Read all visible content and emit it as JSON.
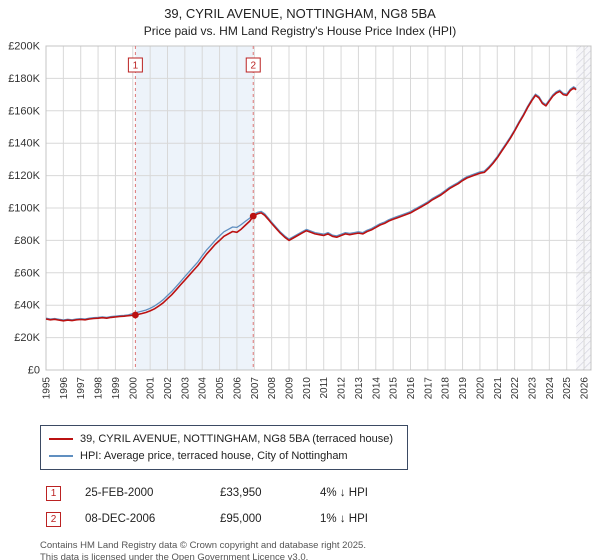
{
  "title": "39, CYRIL AVENUE, NOTTINGHAM, NG8 5BA",
  "subtitle": "Price paid vs. HM Land Registry's House Price Index (HPI)",
  "chart_data": {
    "type": "line",
    "units": "GBP thousands",
    "x_range": [
      1995,
      2026.4
    ],
    "y_range": [
      0,
      200
    ],
    "x_ticks": [
      1995,
      1996,
      1997,
      1998,
      1999,
      2000,
      2001,
      2002,
      2003,
      2004,
      2005,
      2006,
      2007,
      2008,
      2009,
      2010,
      2011,
      2012,
      2013,
      2014,
      2015,
      2016,
      2017,
      2018,
      2019,
      2020,
      2021,
      2022,
      2023,
      2024,
      2025,
      2026
    ],
    "y_ticks": {
      "values": [
        0,
        20,
        40,
        60,
        80,
        100,
        120,
        140,
        160,
        180,
        200
      ],
      "labels": [
        "£0",
        "£20K",
        "£40K",
        "£60K",
        "£80K",
        "£100K",
        "£120K",
        "£140K",
        "£160K",
        "£180K",
        "£200K"
      ]
    },
    "x": [
      1995.0,
      1995.25,
      1995.5,
      1995.75,
      1996.0,
      1996.25,
      1996.5,
      1996.75,
      1997.0,
      1997.25,
      1997.5,
      1997.75,
      1998.0,
      1998.25,
      1998.5,
      1998.75,
      1999.0,
      1999.25,
      1999.5,
      1999.75,
      2000.15,
      2000.5,
      2000.75,
      2001.0,
      2001.25,
      2001.5,
      2001.75,
      2002.0,
      2002.25,
      2002.5,
      2002.75,
      2003.0,
      2003.25,
      2003.5,
      2003.75,
      2004.0,
      2004.25,
      2004.5,
      2004.75,
      2005.0,
      2005.25,
      2005.5,
      2005.75,
      2006.0,
      2006.25,
      2006.5,
      2006.75,
      2006.94,
      2007.2,
      2007.4,
      2007.6,
      2007.8,
      2008.0,
      2008.25,
      2008.5,
      2008.75,
      2009.0,
      2009.25,
      2009.5,
      2009.75,
      2010.0,
      2010.25,
      2010.5,
      2010.75,
      2011.0,
      2011.25,
      2011.5,
      2011.75,
      2012.0,
      2012.25,
      2012.5,
      2012.75,
      2013.0,
      2013.25,
      2013.5,
      2013.75,
      2014.0,
      2014.25,
      2014.5,
      2014.75,
      2015.0,
      2015.25,
      2015.5,
      2015.75,
      2016.0,
      2016.25,
      2016.5,
      2016.75,
      2017.0,
      2017.25,
      2017.5,
      2017.75,
      2018.0,
      2018.25,
      2018.5,
      2018.75,
      2019.0,
      2019.25,
      2019.5,
      2019.75,
      2020.0,
      2020.25,
      2020.5,
      2020.75,
      2021.0,
      2021.25,
      2021.5,
      2021.75,
      2022.0,
      2022.25,
      2022.5,
      2022.75,
      2023.0,
      2023.2,
      2023.4,
      2023.6,
      2023.8,
      2024.0,
      2024.2,
      2024.4,
      2024.6,
      2024.8,
      2025.0,
      2025.2,
      2025.4,
      2025.55
    ],
    "series": [
      {
        "name": "39, CYRIL AVENUE, NOTTINGHAM, NG8 5BA (terraced house)",
        "color": "#bb1111",
        "width": 1.6,
        "values": [
          31.5,
          31.0,
          31.3,
          30.8,
          30.4,
          30.8,
          30.5,
          31.0,
          31.2,
          31.0,
          31.5,
          31.8,
          32.0,
          32.3,
          32.0,
          32.5,
          32.8,
          33.0,
          33.2,
          33.5,
          33.95,
          34.8,
          35.5,
          36.5,
          37.8,
          39.5,
          41.5,
          44.0,
          46.5,
          49.5,
          52.5,
          55.5,
          58.5,
          61.5,
          64.5,
          68.0,
          71.5,
          74.5,
          77.5,
          80.0,
          82.5,
          84.0,
          85.5,
          85.0,
          87.0,
          89.5,
          92.0,
          95.0,
          96.5,
          97.0,
          95.5,
          93.0,
          90.5,
          87.5,
          84.5,
          82.0,
          80.0,
          81.5,
          83.0,
          84.5,
          86.0,
          85.0,
          84.0,
          83.5,
          83.0,
          84.0,
          82.5,
          82.0,
          83.0,
          84.0,
          83.5,
          84.0,
          84.5,
          84.0,
          85.5,
          86.5,
          88.0,
          89.5,
          90.5,
          92.0,
          93.0,
          94.0,
          95.0,
          96.0,
          97.0,
          98.5,
          100.0,
          101.5,
          103.0,
          105.0,
          106.5,
          108.0,
          110.0,
          112.0,
          113.5,
          115.0,
          117.0,
          118.5,
          119.5,
          120.5,
          121.5,
          122.0,
          124.5,
          127.5,
          131.0,
          135.0,
          139.0,
          143.0,
          147.5,
          152.5,
          157.0,
          162.0,
          166.5,
          169.5,
          168.0,
          164.5,
          163.0,
          166.0,
          169.0,
          171.0,
          172.0,
          170.0,
          169.5,
          172.5,
          174.0,
          173.0
        ]
      },
      {
        "name": "HPI: Average price, terraced house, City of Nottingham",
        "color": "#608fc0",
        "width": 1.3,
        "values": [
          32.0,
          31.5,
          31.8,
          31.3,
          30.9,
          31.3,
          31.0,
          31.5,
          31.7,
          31.5,
          32.0,
          32.3,
          32.5,
          32.8,
          32.5,
          33.0,
          33.3,
          33.5,
          33.7,
          34.0,
          35.4,
          36.3,
          37.0,
          38.1,
          39.5,
          41.3,
          43.4,
          46.0,
          48.5,
          51.5,
          54.5,
          57.7,
          60.7,
          63.7,
          66.7,
          70.5,
          74.0,
          77.0,
          80.0,
          82.8,
          85.3,
          86.8,
          88.3,
          88.0,
          89.8,
          91.9,
          93.8,
          96.0,
          97.4,
          97.9,
          96.4,
          93.9,
          91.3,
          88.3,
          85.3,
          82.8,
          80.8,
          82.3,
          83.8,
          85.3,
          86.8,
          85.8,
          84.8,
          84.3,
          83.8,
          84.8,
          83.3,
          82.8,
          83.8,
          84.8,
          84.3,
          84.8,
          85.3,
          84.8,
          86.3,
          87.3,
          88.8,
          90.3,
          91.3,
          92.8,
          93.8,
          94.8,
          95.8,
          96.8,
          97.8,
          99.3,
          100.8,
          102.3,
          103.8,
          105.8,
          107.3,
          108.8,
          110.8,
          112.8,
          114.3,
          115.8,
          117.8,
          119.3,
          120.3,
          121.3,
          122.3,
          122.8,
          125.3,
          128.3,
          131.8,
          135.8,
          139.8,
          143.8,
          148.3,
          153.3,
          157.8,
          162.8,
          167.3,
          170.3,
          168.8,
          165.3,
          163.8,
          166.8,
          169.8,
          171.8,
          172.8,
          170.8,
          170.3,
          173.3,
          174.8,
          173.8
        ]
      }
    ],
    "sales": [
      {
        "label": "1",
        "x": 2000.15,
        "y": 33.95,
        "date": "25-FEB-2000",
        "price": "£33,950",
        "hpi_note": "4% ↓ HPI"
      },
      {
        "label": "2",
        "x": 2006.94,
        "y": 95.0,
        "date": "08-DEC-2006",
        "price": "£95,000",
        "hpi_note": "1% ↓ HPI"
      }
    ],
    "shaded_region": [
      2000.15,
      2006.94
    ],
    "hatched_region": [
      2025.55,
      2026.4
    ],
    "colors": {
      "shade": "#edf3fa",
      "dashed": "#dd7777",
      "grid": "#d8d8d8",
      "border": "#c4c4c4",
      "marker": "#bb1111"
    },
    "legend_position": "bottom-left",
    "grid": true
  },
  "legend": {
    "items": [
      {
        "label": "39, CYRIL AVENUE, NOTTINGHAM, NG8 5BA (terraced house)",
        "color": "#bb1111",
        "thickness": 2
      },
      {
        "label": "HPI: Average price, terraced house, City of Nottingham",
        "color": "#608fc0",
        "thickness": 2
      }
    ]
  },
  "sales_table": [
    {
      "label": "1",
      "date": "25-FEB-2000",
      "price": "£33,950",
      "hpi_note": "4% ↓ HPI"
    },
    {
      "label": "2",
      "date": "08-DEC-2006",
      "price": "£95,000",
      "hpi_note": "1% ↓ HPI"
    }
  ],
  "footer": {
    "line1": "Contains HM Land Registry data © Crown copyright and database right 2025.",
    "line2": "This data is licensed under the Open Government Licence v3.0."
  }
}
